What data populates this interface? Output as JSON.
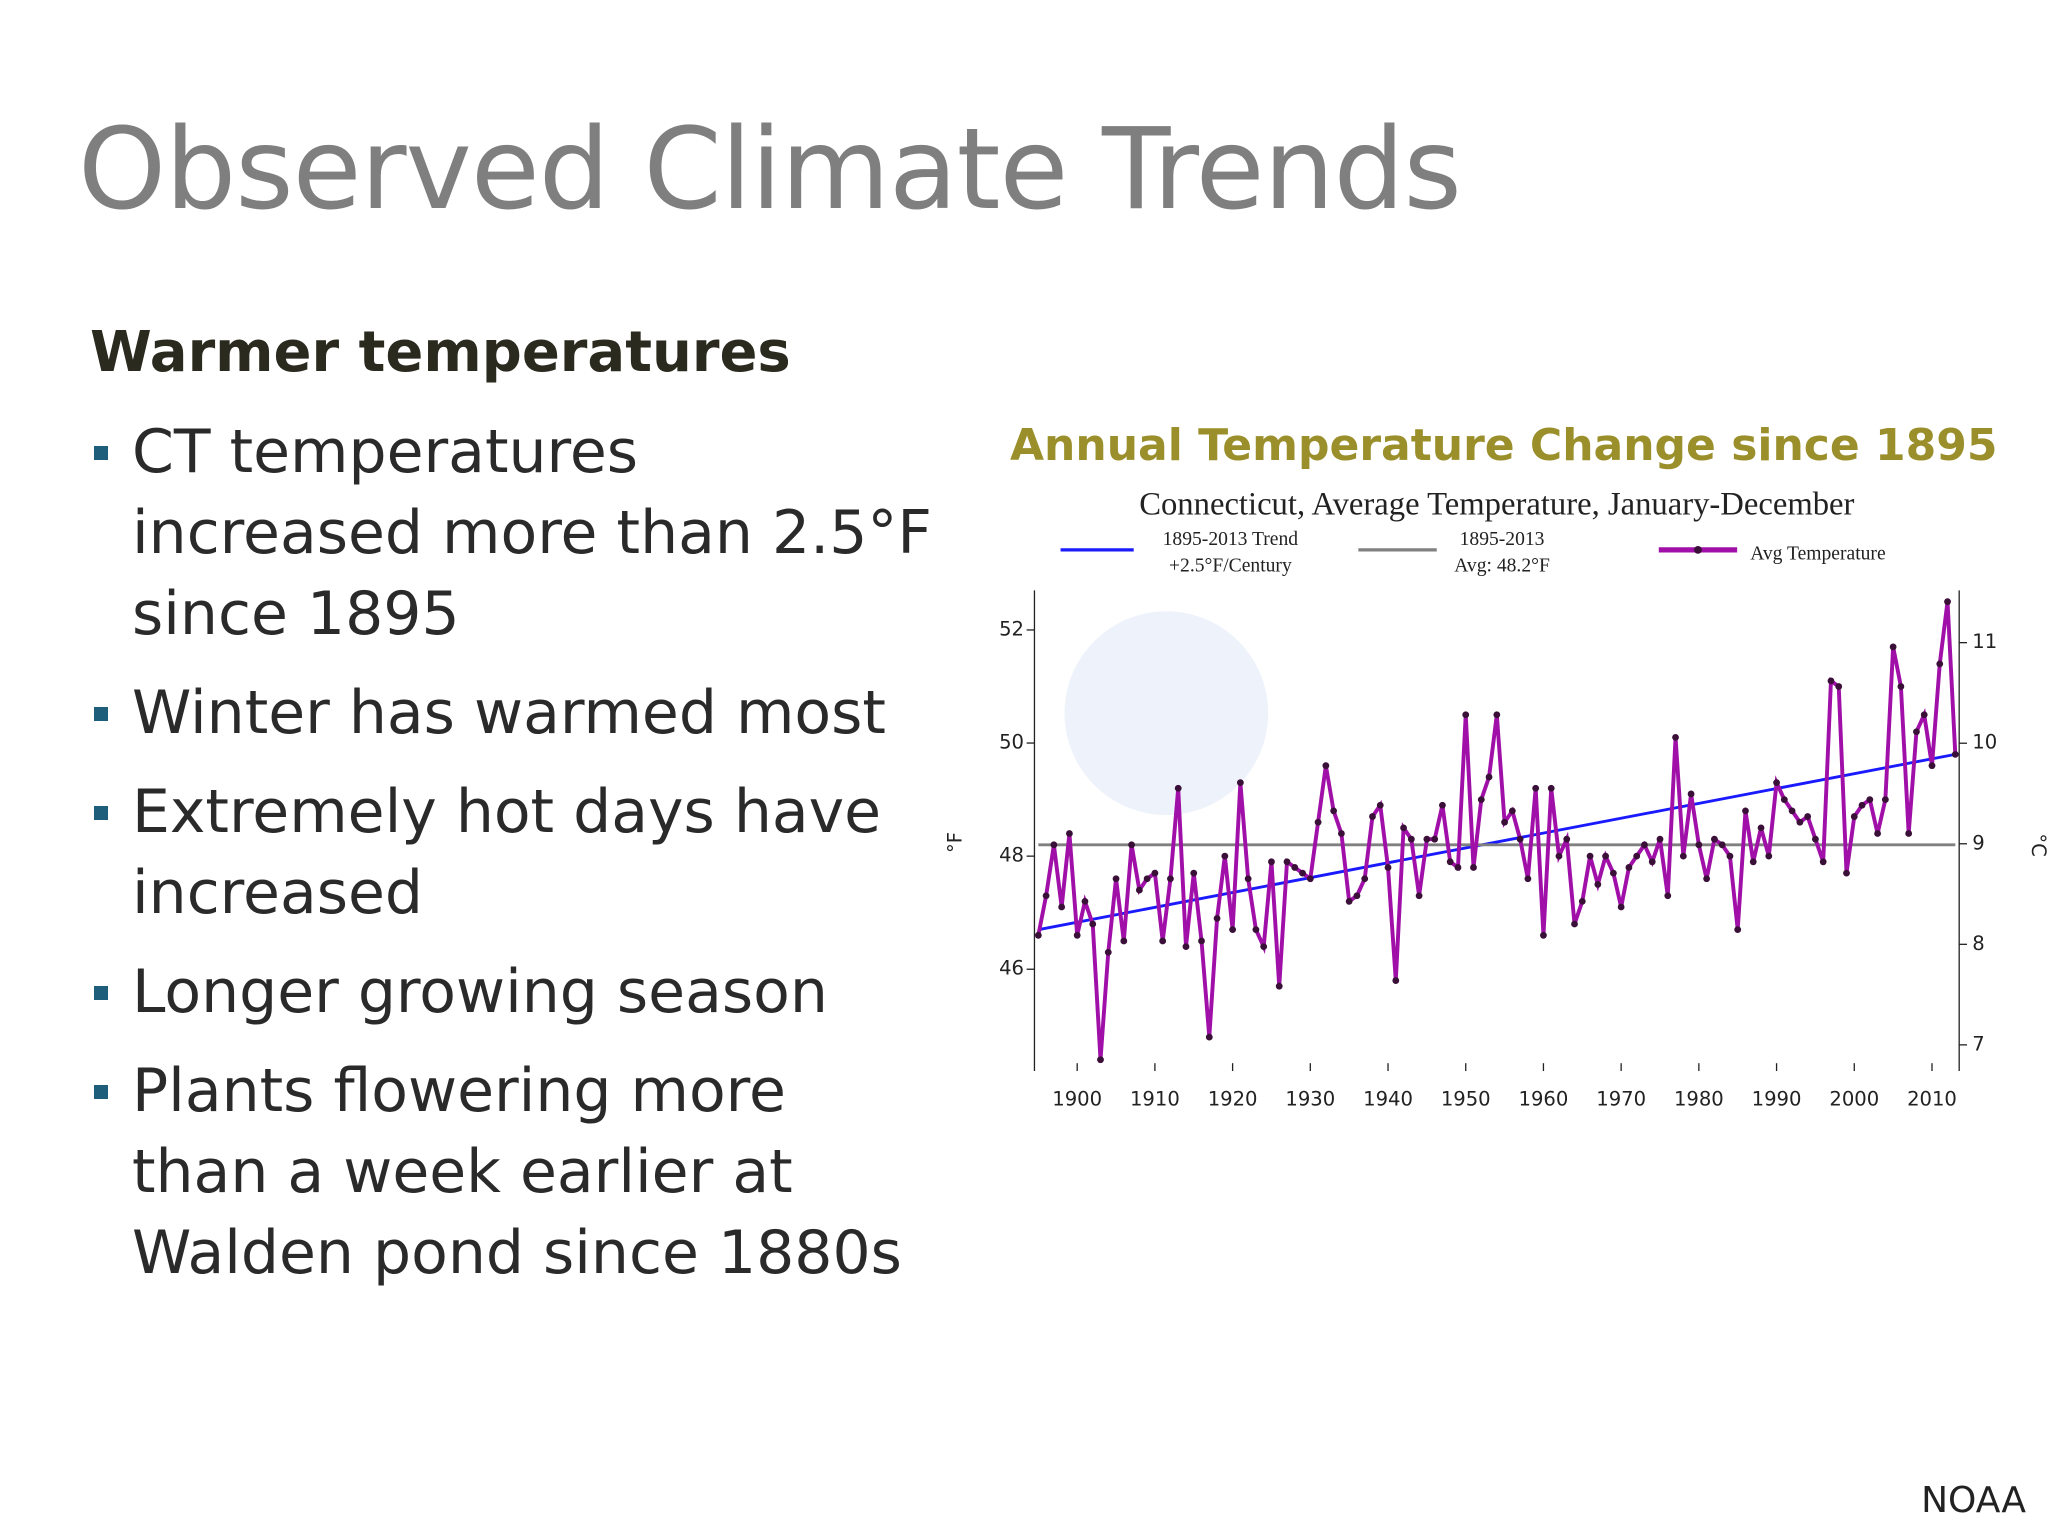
{
  "slide": {
    "title": "Observed Climate Trends",
    "heading": "Warmer temperatures",
    "bullets": [
      "CT temperatures increased more than 2.5°F since 1895",
      "Winter has warmed most",
      "Extremely hot days have increased",
      "Longer growing season",
      "Plants flowering more than a week earlier at Walden pond since 1880s"
    ],
    "chart_heading": "Annual Temperature Change since 1895",
    "source": "NOAA"
  },
  "chart_data": {
    "type": "line",
    "title": "Connecticut, Average Temperature, January-December",
    "y_label": "°F",
    "y2_label": "°C",
    "xlim": [
      1894.5,
      2013.5
    ],
    "xticks": [
      1900,
      1910,
      1920,
      1930,
      1940,
      1950,
      1960,
      1970,
      1980,
      1990,
      2000,
      2010
    ],
    "ylim": [
      44.2,
      52.7
    ],
    "yticks": [
      46,
      48,
      50,
      52
    ],
    "y2lim": [
      6.74,
      11.52
    ],
    "y2ticks": [
      7,
      8,
      9,
      10,
      11
    ],
    "series": [
      {
        "name": "1895-2013 Trend",
        "legend_detail": "+2.5°F/Century",
        "color": "#1a1aff",
        "x": [
          1895,
          2013
        ],
        "values": [
          46.7,
          49.8
        ]
      },
      {
        "name": "1895-2013",
        "legend_detail": "Avg: 48.2°F",
        "color": "#808080",
        "x": [
          1895,
          2013
        ],
        "values": [
          48.2,
          48.2
        ]
      },
      {
        "name": "Avg Temperature",
        "color": "#a010a8",
        "markers": true,
        "x": [
          1895,
          1896,
          1897,
          1898,
          1899,
          1900,
          1901,
          1902,
          1903,
          1904,
          1905,
          1906,
          1907,
          1908,
          1909,
          1910,
          1911,
          1912,
          1913,
          1914,
          1915,
          1916,
          1917,
          1918,
          1919,
          1920,
          1921,
          1922,
          1923,
          1924,
          1925,
          1926,
          1927,
          1928,
          1929,
          1930,
          1931,
          1932,
          1933,
          1934,
          1935,
          1936,
          1937,
          1938,
          1939,
          1940,
          1941,
          1942,
          1943,
          1944,
          1945,
          1946,
          1947,
          1948,
          1949,
          1950,
          1951,
          1952,
          1953,
          1954,
          1955,
          1956,
          1957,
          1958,
          1959,
          1960,
          1961,
          1962,
          1963,
          1964,
          1965,
          1966,
          1967,
          1968,
          1969,
          1970,
          1971,
          1972,
          1973,
          1974,
          1975,
          1976,
          1977,
          1978,
          1979,
          1980,
          1981,
          1982,
          1983,
          1984,
          1985,
          1986,
          1987,
          1988,
          1989,
          1990,
          1991,
          1992,
          1993,
          1994,
          1995,
          1996,
          1997,
          1998,
          1999,
          2000,
          2001,
          2002,
          2003,
          2004,
          2005,
          2006,
          2007,
          2008,
          2009,
          2010,
          2011,
          2012,
          2013
        ],
        "values": [
          46.6,
          47.3,
          48.2,
          47.1,
          48.4,
          46.6,
          47.2,
          46.8,
          44.4,
          46.3,
          47.6,
          46.5,
          48.2,
          47.4,
          47.6,
          47.7,
          46.5,
          47.6,
          49.2,
          46.4,
          47.7,
          46.5,
          44.8,
          46.9,
          48.0,
          46.7,
          49.3,
          47.6,
          46.7,
          46.4,
          47.9,
          45.7,
          47.9,
          47.8,
          47.7,
          47.6,
          48.6,
          49.6,
          48.8,
          48.4,
          47.2,
          47.3,
          47.6,
          48.7,
          48.9,
          47.8,
          45.8,
          48.5,
          48.3,
          47.3,
          48.3,
          48.3,
          48.9,
          47.9,
          47.8,
          50.5,
          47.8,
          49.0,
          49.4,
          50.5,
          48.6,
          48.8,
          48.3,
          47.6,
          49.2,
          46.6,
          49.2,
          48.0,
          48.3,
          46.8,
          47.2,
          48.0,
          47.5,
          48.0,
          47.7,
          47.1,
          47.8,
          48.0,
          48.2,
          47.9,
          48.3,
          47.3,
          50.1,
          48.0,
          49.1,
          48.2,
          47.6,
          48.3,
          48.2,
          48.0,
          46.7,
          48.8,
          47.9,
          48.5,
          48.0,
          49.3,
          49.0,
          48.8,
          48.6,
          48.7,
          48.3,
          47.9,
          51.1,
          51.0,
          47.7,
          48.7,
          48.9,
          49.0,
          48.4,
          49.0,
          51.7,
          51.0,
          48.4,
          50.2,
          50.5,
          49.6,
          51.4,
          52.5,
          49.8
        ]
      }
    ]
  }
}
